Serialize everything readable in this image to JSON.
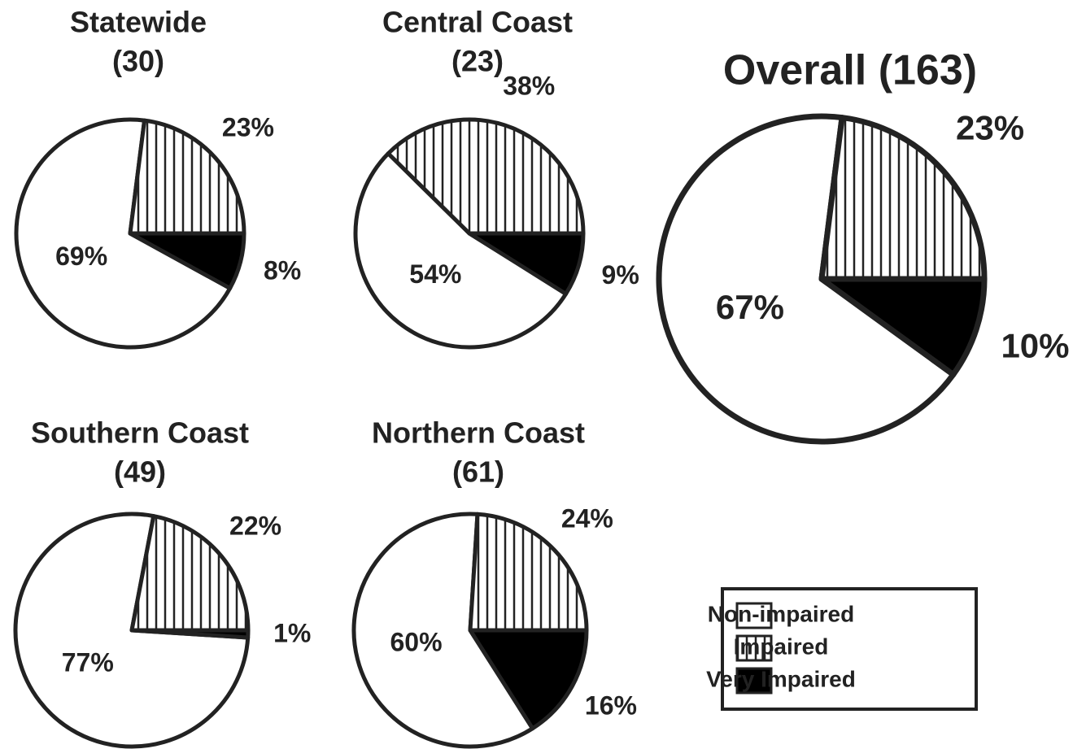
{
  "chart_data": [
    {
      "type": "pie",
      "title": "Statewide",
      "subtitle": "(30)",
      "values": [
        69,
        23,
        8
      ],
      "value_labels": [
        "69%",
        "23%",
        "8%"
      ]
    },
    {
      "type": "pie",
      "title": "Central Coast",
      "subtitle": "(23)",
      "values": [
        54,
        38,
        9
      ],
      "value_labels": [
        "54%",
        "38%",
        "9%"
      ]
    },
    {
      "type": "pie",
      "title": "Overall (163)",
      "values": [
        67,
        23,
        10
      ],
      "value_labels": [
        "67%",
        "23%",
        "10%"
      ]
    },
    {
      "type": "pie",
      "title": "Southern Coast",
      "subtitle": "(49)",
      "values": [
        77,
        22,
        1
      ],
      "value_labels": [
        "77%",
        "22%",
        "1%"
      ]
    },
    {
      "type": "pie",
      "title": "Northern Coast",
      "subtitle": "(61)",
      "values": [
        60,
        24,
        16
      ],
      "value_labels": [
        "60%",
        "24%",
        "16%"
      ]
    }
  ],
  "legend": {
    "labels": [
      "Non-impaired",
      "Impaired",
      "Very Impaired"
    ],
    "fills": [
      "white",
      "vertical-hatch",
      "black"
    ]
  }
}
